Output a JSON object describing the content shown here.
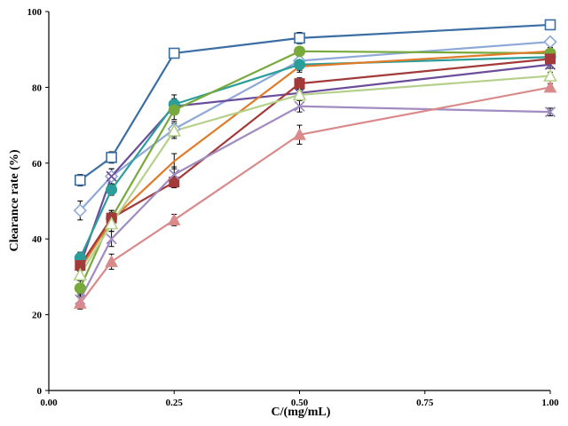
{
  "chart_data": {
    "type": "line",
    "title": "",
    "xlabel": "C/(mg/mL)",
    "ylabel": "Clearance rate (%)",
    "xlim": [
      0,
      1
    ],
    "ylim": [
      0,
      100
    ],
    "grid": false,
    "x_tick_labels": [
      "0.00",
      "0.25",
      "0.50",
      "0.75",
      "1.00"
    ],
    "y_tick_labels": [
      "0",
      "20",
      "40",
      "60",
      "80",
      "100"
    ],
    "x": [
      0.0625,
      0.125,
      0.25,
      0.5,
      1.0
    ],
    "series": [
      {
        "color": "#3A6EA5",
        "marker": "square-open",
        "values": [
          55.5,
          61.5,
          89.0,
          93.0,
          96.5
        ],
        "errors": [
          1.5,
          1.5,
          0.8,
          1.5,
          0.6
        ]
      },
      {
        "color": "#8EA9D8",
        "marker": "diamond-open",
        "values": [
          47.5,
          56.5,
          69.0,
          87.0,
          92.0
        ],
        "errors": [
          2.5,
          2.0,
          2.0,
          1.5,
          1.0
        ]
      },
      {
        "color": "#6B4E9B",
        "marker": "x",
        "values": [
          33.0,
          56.5,
          75.0,
          78.5,
          86.0
        ],
        "errors": [
          1.5,
          2.0,
          2.0,
          1.5,
          1.0
        ]
      },
      {
        "color": "#2B9E9A",
        "marker": "circle-filled",
        "values": [
          35.0,
          53.0,
          75.5,
          86.0,
          88.0
        ],
        "errors": [
          1.5,
          1.5,
          2.5,
          1.5,
          1.0
        ]
      },
      {
        "color": "#77A93C",
        "marker": "circle-filled",
        "values": [
          27.0,
          45.5,
          74.0,
          89.5,
          89.0
        ],
        "errors": [
          2.0,
          2.0,
          2.5,
          1.0,
          1.0
        ]
      },
      {
        "color": "#E07B2A",
        "marker": "none",
        "values": [
          32.0,
          45.0,
          60.5,
          85.5,
          89.5
        ],
        "errors": [
          1.5,
          2.0,
          2.0,
          1.5,
          1.0
        ]
      },
      {
        "color": "#A33A3A",
        "marker": "square-filled",
        "values": [
          33.0,
          45.5,
          55.0,
          81.0,
          87.5
        ],
        "errors": [
          1.5,
          2.0,
          1.5,
          1.5,
          1.0
        ]
      },
      {
        "color": "#B5D08A",
        "marker": "triangle-open",
        "values": [
          30.5,
          44.0,
          68.5,
          78.0,
          83.0
        ],
        "errors": [
          1.5,
          2.0,
          2.0,
          1.5,
          1.0
        ]
      },
      {
        "color": "#A08CC0",
        "marker": "x",
        "values": [
          24.0,
          40.0,
          57.0,
          75.0,
          73.5
        ],
        "errors": [
          1.5,
          2.0,
          2.0,
          1.5,
          1.0
        ]
      },
      {
        "color": "#D98A8A",
        "marker": "triangle-filled",
        "values": [
          23.0,
          34.0,
          45.0,
          67.5,
          80.0
        ],
        "errors": [
          1.5,
          2.0,
          1.5,
          2.5,
          1.0
        ]
      }
    ]
  }
}
